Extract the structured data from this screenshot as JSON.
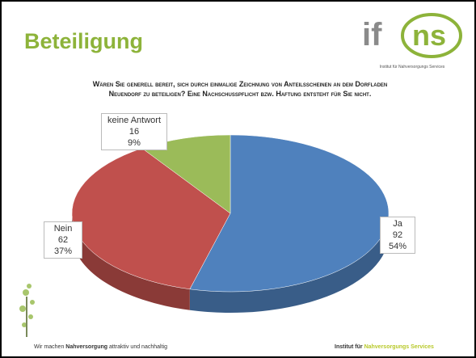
{
  "header": {
    "title": "Beteiligung",
    "logo_left": "if",
    "logo_right": "ns",
    "logo_tagline": "Institut für Nahversorgungs Services"
  },
  "chart_data": {
    "type": "pie",
    "title": "Wären Sie generell bereit, sich durch einmalige Zeichnung von Anteilsscheinen an dem Dorfladen Neuendorf zu beteiligen? Eine Nachschusspflicht bzw. Haftung entsteht für Sie nicht.",
    "categories": [
      "Ja",
      "Nein",
      "keine Antwort"
    ],
    "values": [
      92,
      62,
      16
    ],
    "percent_labels": [
      "54%",
      "37%",
      "9%"
    ],
    "colors": [
      "#4f81bd",
      "#c0504d",
      "#9bbb59"
    ]
  },
  "footer": {
    "left_pre": "Wir machen",
    "left_bold": "Nahversorgung",
    "left_post": "attraktiv und nachhaltig",
    "right_pre": "Institut für",
    "right_accent": "Nahversorgungs Services"
  }
}
